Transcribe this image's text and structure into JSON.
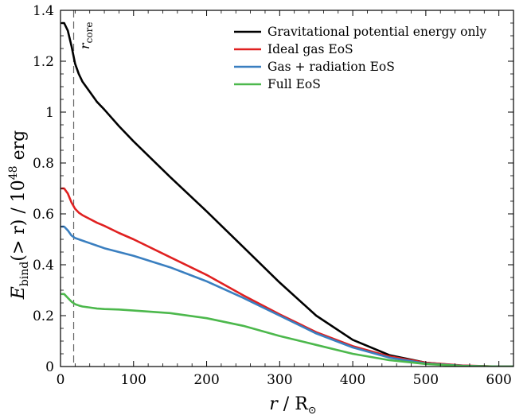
{
  "chart_data": {
    "type": "line",
    "xlabel": {
      "var": "r",
      "sep": " / ",
      "unit": "R",
      "unit_sub": "⊙"
    },
    "ylabel": {
      "E": "E",
      "sub": "bind",
      "args": "(> r) / 10",
      "exp": "48",
      "unit": " erg"
    },
    "xlim": [
      0,
      620
    ],
    "ylim": [
      0,
      1.4
    ],
    "xticks": [
      0,
      100,
      200,
      300,
      400,
      500,
      600
    ],
    "yticks": [
      0,
      0.2,
      0.4,
      0.6,
      0.8,
      1,
      1.2,
      1.4
    ],
    "xtick_labels": [
      "0",
      "100",
      "200",
      "300",
      "400",
      "500",
      "600"
    ],
    "ytick_labels": [
      "0",
      "0.2",
      "0.4",
      "0.6",
      "0.8",
      "1",
      "1.2",
      "1.4"
    ],
    "grid": false,
    "legend_position": "top-right",
    "annotation": {
      "text_main": "r",
      "text_sub": "core",
      "x": 18
    },
    "series": [
      {
        "name": "Gravitational potential energy only",
        "color": "#000000",
        "x": [
          2,
          5,
          10,
          15,
          20,
          25,
          30,
          40,
          50,
          60,
          80,
          100,
          150,
          200,
          250,
          300,
          350,
          400,
          450,
          500,
          550,
          600,
          620
        ],
        "y": [
          1.35,
          1.35,
          1.32,
          1.26,
          1.19,
          1.15,
          1.12,
          1.08,
          1.04,
          1.01,
          0.945,
          0.885,
          0.745,
          0.61,
          0.47,
          0.33,
          0.2,
          0.105,
          0.045,
          0.015,
          0.003,
          0.0,
          0.0
        ]
      },
      {
        "name": "Ideal gas EoS",
        "color": "#e02020",
        "x": [
          2,
          5,
          10,
          15,
          20,
          25,
          30,
          40,
          50,
          60,
          80,
          100,
          150,
          200,
          250,
          300,
          350,
          400,
          450,
          500,
          550,
          600,
          620
        ],
        "y": [
          0.7,
          0.7,
          0.68,
          0.645,
          0.62,
          0.605,
          0.595,
          0.58,
          0.565,
          0.553,
          0.525,
          0.5,
          0.43,
          0.36,
          0.28,
          0.205,
          0.135,
          0.08,
          0.04,
          0.015,
          0.004,
          0.0,
          0.0
        ]
      },
      {
        "name": "Gas + radiation EoS",
        "color": "#3a7fc0",
        "x": [
          2,
          5,
          10,
          15,
          20,
          25,
          30,
          40,
          50,
          60,
          80,
          100,
          150,
          200,
          250,
          300,
          350,
          400,
          450,
          500,
          550,
          600,
          620
        ],
        "y": [
          0.55,
          0.55,
          0.535,
          0.515,
          0.505,
          0.5,
          0.495,
          0.485,
          0.475,
          0.465,
          0.45,
          0.435,
          0.39,
          0.335,
          0.27,
          0.2,
          0.13,
          0.075,
          0.035,
          0.012,
          0.003,
          0.0,
          0.0
        ]
      },
      {
        "name": "Full EoS",
        "color": "#4cb84c",
        "x": [
          2,
          5,
          10,
          15,
          20,
          25,
          30,
          40,
          50,
          60,
          80,
          100,
          150,
          200,
          250,
          300,
          350,
          400,
          450,
          500,
          550,
          600,
          620
        ],
        "y": [
          0.285,
          0.285,
          0.27,
          0.255,
          0.245,
          0.24,
          0.236,
          0.232,
          0.228,
          0.226,
          0.224,
          0.22,
          0.21,
          0.19,
          0.16,
          0.12,
          0.085,
          0.05,
          0.025,
          0.01,
          0.002,
          0.0,
          0.0
        ]
      }
    ]
  }
}
